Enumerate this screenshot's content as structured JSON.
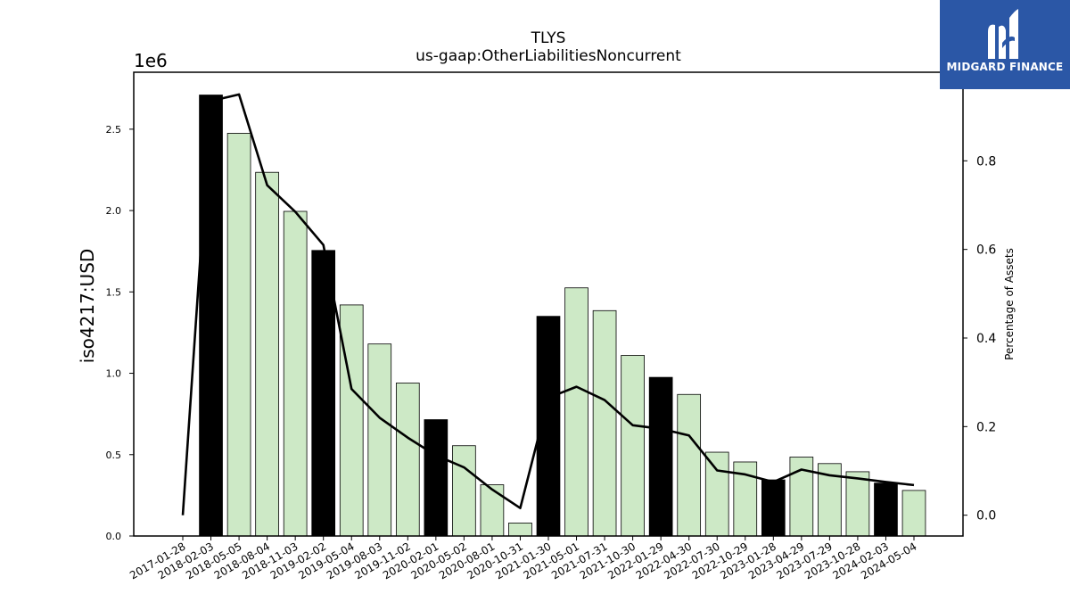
{
  "chart_data": {
    "type": "bar",
    "title": "TLYS",
    "subtitle": "us-gaap:OtherLiabilitiesNoncurrent",
    "ylabel": "iso4217:USD",
    "y2label": "Percentage of Assets",
    "y_offset_label": "1e6",
    "ylim": [
      0,
      2850000
    ],
    "y2lim": [
      -0.047,
      1.0
    ],
    "yticks": [
      0,
      500000,
      1000000,
      1500000,
      2000000,
      2500000
    ],
    "ytick_labels": [
      "0.0",
      "0.5",
      "1.0",
      "1.5",
      "2.0",
      "2.5"
    ],
    "y2ticks": [
      0.0,
      0.2,
      0.4,
      0.6,
      0.8
    ],
    "y2tick_labels": [
      "0.0",
      "0.2",
      "0.4",
      "0.6",
      "0.8"
    ],
    "categories": [
      "2017-01-28",
      "2018-02-03",
      "2018-05-05",
      "2018-08-04",
      "2018-11-03",
      "2019-02-02",
      "2019-05-04",
      "2019-08-03",
      "2019-11-02",
      "2020-02-01",
      "2020-05-02",
      "2020-08-01",
      "2020-10-31",
      "2021-01-30",
      "2021-05-01",
      "2021-07-31",
      "2021-10-30",
      "2022-01-29",
      "2022-04-30",
      "2022-07-30",
      "2022-10-29",
      "2023-01-28",
      "2023-04-29",
      "2023-07-29",
      "2023-10-28",
      "2024-02-03",
      "2024-05-04"
    ],
    "series": [
      {
        "kind": "bar",
        "values": [
          null,
          2710000,
          2475000,
          2235000,
          1995000,
          1755000,
          1420000,
          1180000,
          940000,
          715000,
          555000,
          315000,
          80000,
          1350000,
          1525000,
          1385000,
          1110000,
          975000,
          870000,
          515000,
          455000,
          345000,
          485000,
          445000,
          395000,
          325000,
          280000
        ],
        "annual": [
          false,
          true,
          false,
          false,
          false,
          true,
          false,
          false,
          false,
          true,
          false,
          false,
          false,
          true,
          false,
          false,
          false,
          true,
          false,
          false,
          false,
          true,
          false,
          false,
          false,
          true,
          false
        ],
        "colors": {
          "annual": "#000000",
          "quarterly": "#cde9c6"
        }
      },
      {
        "kind": "line",
        "axis": "right",
        "values": [
          0.0,
          0.935,
          0.95,
          0.745,
          0.685,
          0.61,
          0.285,
          0.22,
          0.175,
          0.135,
          0.108,
          0.058,
          0.016,
          0.265,
          0.29,
          0.26,
          0.203,
          0.195,
          0.18,
          0.101,
          0.092,
          0.075,
          0.103,
          0.09,
          0.083,
          0.075,
          0.068
        ],
        "color": "#000000"
      }
    ],
    "grid": false,
    "legend": "none"
  },
  "logo": {
    "text": "MIDGARD FINANCE",
    "bg": "#2b57a6"
  }
}
